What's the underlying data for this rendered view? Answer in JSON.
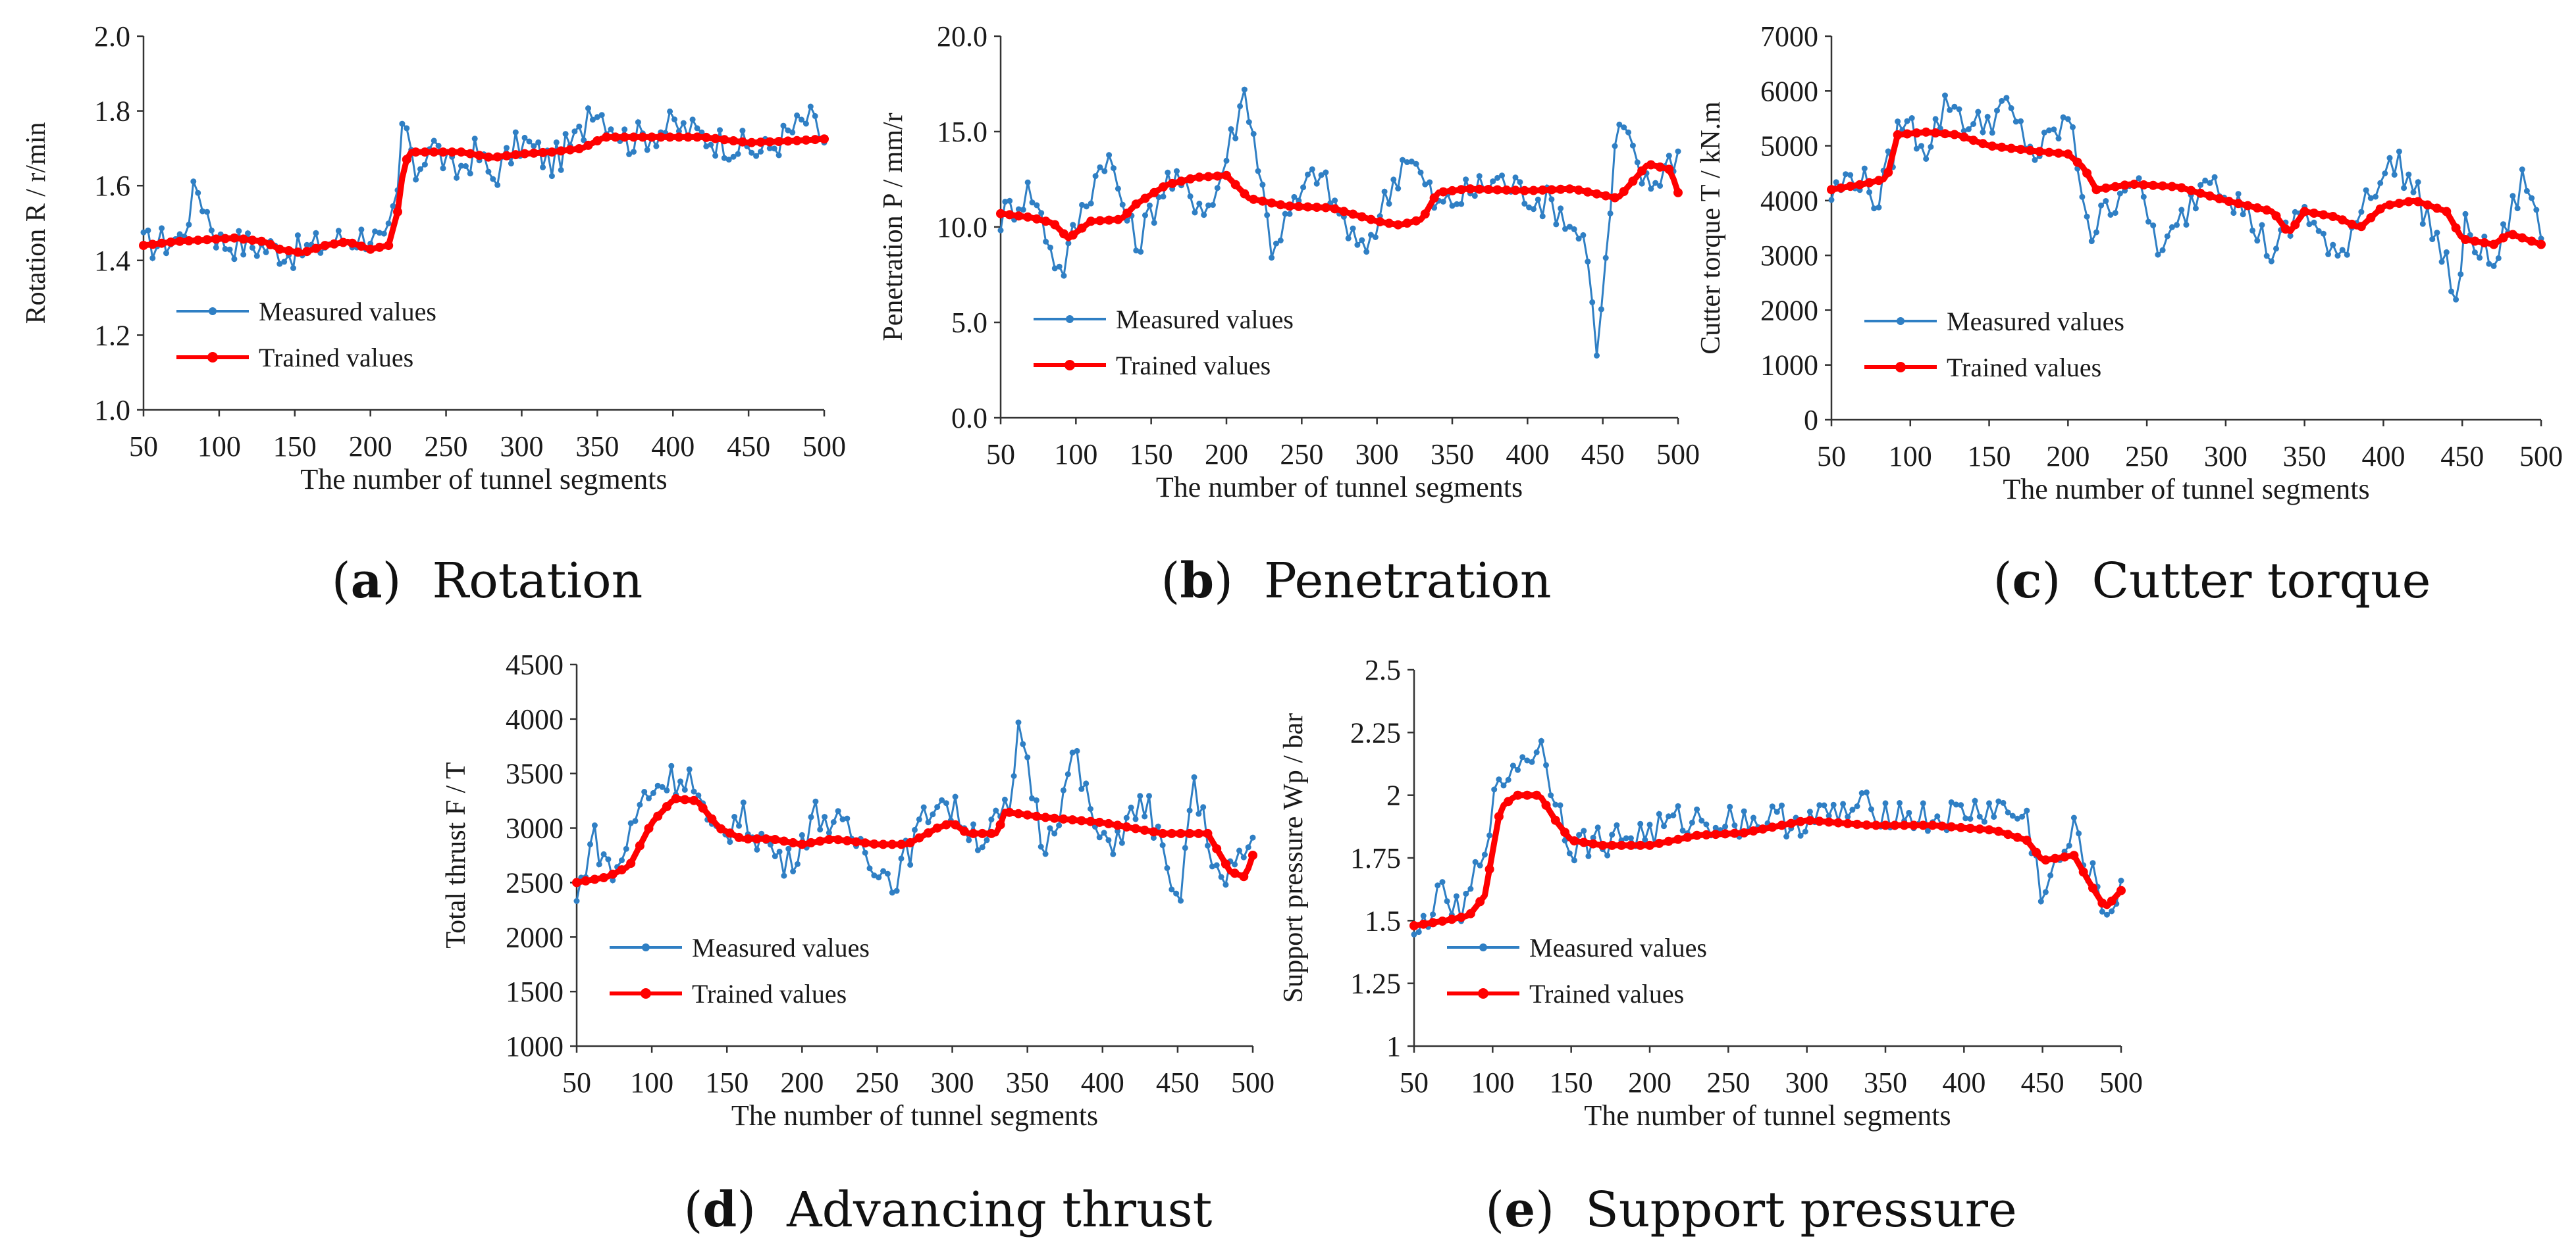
{
  "colors": {
    "measured": "#2f7fc4",
    "trained": "#ff0000",
    "axis": "#333333"
  },
  "chart_data": [
    {
      "id": "a",
      "type": "line",
      "caption": {
        "letter": "a",
        "text": "Rotation"
      },
      "xlabel": "The number of tunnel segments",
      "ylabel": "Rotation R / r/min",
      "xlim": [
        50,
        500
      ],
      "ylim": [
        1.0,
        2.0
      ],
      "xticks": [
        50,
        100,
        150,
        200,
        250,
        300,
        350,
        400,
        450,
        500
      ],
      "yticks": [
        1.0,
        1.2,
        1.4,
        1.6,
        1.8,
        2.0
      ],
      "ytick_labels": [
        "1.0",
        "1.2",
        "1.4",
        "1.6",
        "1.8",
        "2.0"
      ],
      "legend": {
        "position": "lower-left",
        "entries": [
          "Measured values",
          "Trained values"
        ]
      },
      "series": [
        {
          "name": "Trained values",
          "x": [
            50,
            70,
            90,
            110,
            130,
            140,
            155,
            170,
            185,
            200,
            212,
            218,
            222,
            226,
            240,
            260,
            280,
            300,
            320,
            340,
            355,
            380,
            420,
            450,
            480,
            500
          ],
          "values": [
            1.44,
            1.45,
            1.455,
            1.46,
            1.45,
            1.43,
            1.42,
            1.44,
            1.45,
            1.43,
            1.44,
            1.53,
            1.65,
            1.69,
            1.69,
            1.69,
            1.675,
            1.685,
            1.69,
            1.7,
            1.73,
            1.73,
            1.73,
            1.715,
            1.72,
            1.725
          ]
        },
        {
          "name": "Measured values",
          "x": [
            50,
            75,
            85,
            100,
            125,
            150,
            175,
            200,
            210,
            218,
            222,
            228,
            240,
            255,
            270,
            280,
            300,
            320,
            340,
            345,
            370,
            400,
            430,
            460,
            490,
            500
          ],
          "values": [
            1.44,
            1.46,
            1.6,
            1.45,
            1.44,
            1.42,
            1.45,
            1.47,
            1.43,
            1.57,
            1.82,
            1.62,
            1.72,
            1.63,
            1.69,
            1.62,
            1.72,
            1.66,
            1.74,
            1.83,
            1.72,
            1.76,
            1.72,
            1.69,
            1.78,
            1.72
          ]
        }
      ]
    },
    {
      "id": "b",
      "type": "line",
      "caption": {
        "letter": "b",
        "text": "Penetration"
      },
      "xlabel": "The number of tunnel segments",
      "ylabel": "Penetration P / mm/r",
      "xlim": [
        50,
        500
      ],
      "ylim": [
        0,
        20
      ],
      "xticks": [
        50,
        100,
        150,
        200,
        250,
        300,
        350,
        400,
        450,
        500
      ],
      "yticks": [
        0,
        5,
        10,
        15,
        20
      ],
      "ytick_labels": [
        "0.0",
        "5.0",
        "10.0",
        "15.0",
        "20.0"
      ],
      "legend": {
        "position": "lower-left",
        "entries": [
          "Measured values",
          "Trained values"
        ]
      },
      "series": [
        {
          "name": "Trained values",
          "x": [
            50,
            70,
            85,
            95,
            110,
            130,
            140,
            160,
            180,
            200,
            215,
            240,
            270,
            300,
            315,
            330,
            340,
            360,
            400,
            430,
            460,
            480,
            495,
            500
          ],
          "values": [
            10.7,
            10.5,
            10.2,
            9.4,
            10.3,
            10.4,
            11.2,
            12.2,
            12.6,
            12.7,
            11.5,
            11.1,
            11.0,
            10.3,
            10.1,
            10.4,
            11.8,
            12.0,
            11.9,
            12.0,
            11.5,
            13.3,
            13.0,
            11.8
          ]
        },
        {
          "name": "Measured values",
          "x": [
            50,
            70,
            90,
            100,
            120,
            140,
            160,
            190,
            213,
            230,
            260,
            290,
            320,
            340,
            380,
            420,
            440,
            444,
            447,
            460,
            480,
            500
          ],
          "values": [
            10.5,
            12.0,
            7.5,
            10.0,
            14.0,
            9.0,
            12.5,
            11.0,
            17.3,
            9.0,
            13.0,
            8.5,
            14.0,
            11.0,
            12.5,
            11.0,
            9.0,
            4.5,
            3.5,
            15.5,
            12.0,
            14.0
          ]
        }
      ]
    },
    {
      "id": "c",
      "type": "line",
      "caption": {
        "letter": "c",
        "text": "Cutter torque"
      },
      "xlabel": "The number of tunnel segments",
      "ylabel": "Cutter torque T / kN.m",
      "xlim": [
        50,
        500
      ],
      "ylim": [
        0,
        7000
      ],
      "xticks": [
        50,
        100,
        150,
        200,
        250,
        300,
        350,
        400,
        450,
        500
      ],
      "yticks": [
        0,
        1000,
        2000,
        3000,
        4000,
        5000,
        6000,
        7000
      ],
      "ytick_labels": [
        "0",
        "1000",
        "2000",
        "3000",
        "4000",
        "5000",
        "6000",
        "7000"
      ],
      "legend": {
        "position": "lower-left",
        "entries": [
          "Measured values",
          "Trained values"
        ]
      },
      "series": [
        {
          "name": "Trained values",
          "x": [
            50,
            70,
            85,
            92,
            110,
            130,
            150,
            180,
            200,
            210,
            218,
            240,
            270,
            300,
            330,
            340,
            350,
            370,
            385,
            400,
            420,
            440,
            450,
            470,
            480,
            500
          ],
          "values": [
            4200,
            4300,
            4400,
            5200,
            5250,
            5200,
            5000,
            4900,
            4850,
            4600,
            4200,
            4300,
            4250,
            4000,
            3800,
            3400,
            3800,
            3700,
            3500,
            3900,
            4000,
            3800,
            3300,
            3200,
            3400,
            3200
          ]
        },
        {
          "name": "Measured values",
          "x": [
            50,
            65,
            80,
            95,
            110,
            125,
            140,
            160,
            180,
            200,
            215,
            240,
            260,
            290,
            310,
            330,
            350,
            370,
            390,
            410,
            430,
            448,
            452,
            470,
            490,
            500
          ],
          "values": [
            4100,
            4500,
            4000,
            5500,
            5000,
            5850,
            5300,
            5700,
            4800,
            5500,
            3400,
            4500,
            3000,
            4600,
            3900,
            3000,
            3900,
            2800,
            4200,
            4700,
            3600,
            2100,
            3500,
            2800,
            4500,
            3300
          ]
        }
      ]
    },
    {
      "id": "d",
      "type": "line",
      "caption": {
        "letter": "d",
        "text": "Advancing thrust"
      },
      "xlabel": "The number of tunnel segments",
      "ylabel": "Total thrust F / T",
      "xlim": [
        50,
        500
      ],
      "ylim": [
        1000,
        4500
      ],
      "xticks": [
        50,
        100,
        150,
        200,
        250,
        300,
        350,
        400,
        450,
        500
      ],
      "yticks": [
        1000,
        1500,
        2000,
        2500,
        3000,
        3500,
        4000,
        4500
      ],
      "ytick_labels": [
        "1000",
        "1500",
        "2000",
        "2500",
        "3000",
        "3500",
        "4000",
        "4500"
      ],
      "legend": {
        "position": "lower-left",
        "entries": [
          "Measured values",
          "Trained values"
        ]
      },
      "series": [
        {
          "name": "Trained values",
          "x": [
            50,
            70,
            85,
            100,
            115,
            130,
            145,
            160,
            180,
            200,
            220,
            250,
            270,
            290,
            300,
            310,
            330,
            335,
            360,
            400,
            440,
            470,
            485,
            495,
            500
          ],
          "values": [
            2500,
            2550,
            2650,
            3050,
            3270,
            3250,
            3000,
            2900,
            2900,
            2850,
            2900,
            2850,
            2850,
            3000,
            3050,
            2950,
            2950,
            3150,
            3100,
            3050,
            2950,
            2950,
            2600,
            2550,
            2750
          ]
        },
        {
          "name": "Measured values",
          "x": [
            50,
            60,
            75,
            95,
            110,
            125,
            140,
            160,
            190,
            210,
            240,
            260,
            290,
            320,
            340,
            345,
            360,
            375,
            380,
            400,
            430,
            450,
            460,
            480,
            500
          ],
          "values": [
            2300,
            2950,
            2550,
            3300,
            3450,
            3480,
            2900,
            3100,
            2650,
            3150,
            2850,
            2500,
            3300,
            2900,
            3200,
            4000,
            2850,
            3300,
            3700,
            2800,
            3250,
            2200,
            3400,
            2450,
            2900
          ]
        }
      ]
    },
    {
      "id": "e",
      "type": "line",
      "caption": {
        "letter": "e",
        "text": "Support pressure"
      },
      "xlabel": "The number of tunnel segments",
      "ylabel": "Support pressure Wp / bar",
      "xlim": [
        50,
        500
      ],
      "ylim": [
        1,
        2.5
      ],
      "xticks": [
        50,
        100,
        150,
        200,
        250,
        300,
        350,
        400,
        450,
        500
      ],
      "yticks": [
        1,
        1.25,
        1.5,
        1.75,
        2,
        2.25,
        2.5
      ],
      "ytick_labels": [
        "1",
        "1.25",
        "1.5",
        "1.75",
        "2",
        "2.25",
        "2.5"
      ],
      "legend": {
        "position": "lower-left",
        "entries": [
          "Measured values",
          "Trained values"
        ]
      },
      "series": [
        {
          "name": "Trained values",
          "x": [
            50,
            70,
            85,
            95,
            105,
            115,
            130,
            140,
            150,
            170,
            200,
            230,
            260,
            300,
            340,
            380,
            420,
            440,
            450,
            470,
            480,
            490,
            500
          ],
          "values": [
            1.48,
            1.5,
            1.52,
            1.6,
            1.95,
            2.0,
            2.0,
            1.9,
            1.82,
            1.8,
            1.8,
            1.84,
            1.85,
            1.9,
            1.88,
            1.88,
            1.86,
            1.82,
            1.74,
            1.76,
            1.65,
            1.55,
            1.62
          ]
        },
        {
          "name": "Measured values",
          "x": [
            50,
            60,
            70,
            80,
            90,
            100,
            110,
            120,
            130,
            140,
            150,
            200,
            220,
            300,
            340,
            380,
            420,
            440,
            450,
            470,
            480,
            490,
            500
          ],
          "values": [
            1.4,
            1.55,
            1.6,
            1.5,
            1.7,
            1.95,
            2.1,
            2.15,
            2.2,
            2.0,
            1.8,
            1.85,
            1.9,
            1.9,
            1.95,
            1.9,
            1.95,
            1.9,
            1.6,
            1.85,
            1.7,
            1.52,
            1.65
          ]
        }
      ]
    }
  ]
}
